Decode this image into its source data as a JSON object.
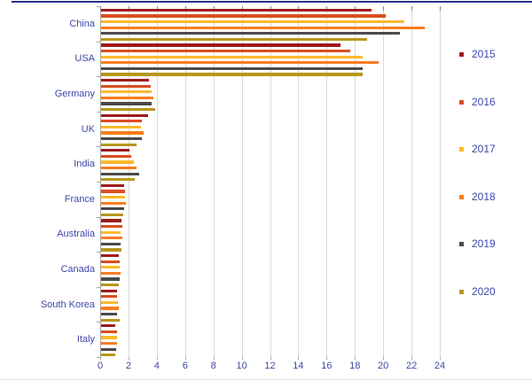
{
  "chart_data": {
    "type": "bar",
    "orientation": "horizontal",
    "title": "",
    "xlabel": "",
    "ylabel": "",
    "xlim": [
      0,
      24
    ],
    "xticks": [
      0,
      2,
      4,
      6,
      8,
      10,
      12,
      14,
      16,
      18,
      20,
      22,
      24
    ],
    "grid": true,
    "legend_position": "right",
    "categories": [
      "China",
      "USA",
      "Germany",
      "UK",
      "India",
      "France",
      "Australia",
      "Canada",
      "South Korea",
      "Italy"
    ],
    "series": [
      {
        "name": "2015",
        "color": "#9e1b1e",
        "values": [
          19.1,
          16.9,
          3.4,
          3.3,
          2.0,
          1.65,
          1.45,
          1.25,
          1.1,
          1.0
        ]
      },
      {
        "name": "2016",
        "color": "#dc4d20",
        "values": [
          20.1,
          17.6,
          3.5,
          2.9,
          2.1,
          1.7,
          1.5,
          1.3,
          1.15,
          1.1
        ]
      },
      {
        "name": "2017",
        "color": "#fbba2c",
        "values": [
          21.4,
          18.5,
          3.6,
          2.8,
          2.3,
          1.7,
          1.4,
          1.3,
          1.2,
          1.1
        ]
      },
      {
        "name": "2018",
        "color": "#fa7d1f",
        "values": [
          22.9,
          19.6,
          3.7,
          3.0,
          2.5,
          1.75,
          1.5,
          1.35,
          1.25,
          1.15
        ]
      },
      {
        "name": "2019",
        "color": "#4a4a4a",
        "values": [
          21.1,
          18.5,
          3.6,
          2.9,
          2.7,
          1.65,
          1.4,
          1.3,
          1.1,
          1.05
        ]
      },
      {
        "name": "2020",
        "color": "#b7971b",
        "values": [
          18.8,
          18.5,
          3.8,
          2.5,
          2.4,
          1.55,
          1.45,
          1.25,
          1.3,
          1.0
        ]
      }
    ]
  },
  "colors": {
    "top_border": "#2b2f84",
    "label_blue": "#3e47a8",
    "gridline": "#d9d9d9",
    "axis": "#a6a6a6"
  }
}
